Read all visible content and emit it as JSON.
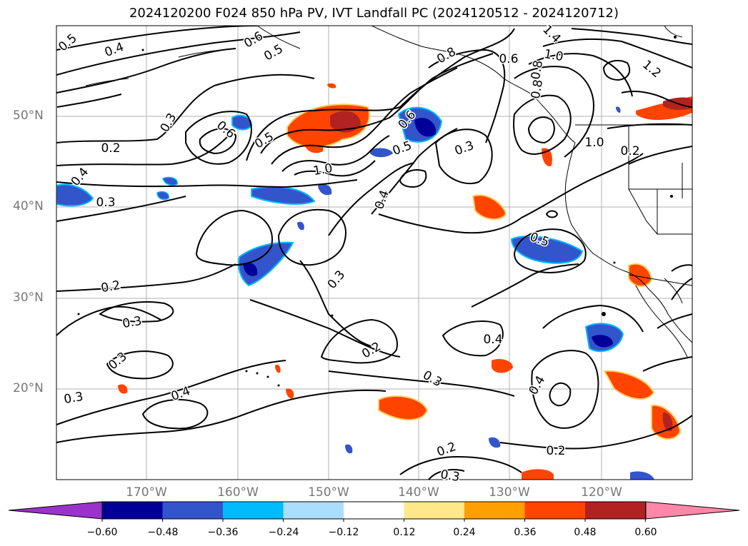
{
  "title": "2024120200 F024 850 hPa PV, IVT Landfall PC (2024120512 - 2024120712)",
  "lat_labels": [
    "50°N",
    "40°N",
    "30°N",
    "20°N"
  ],
  "lon_labels": [
    "170°W",
    "160°W",
    "150°W",
    "140°W",
    "130°W",
    "120°W"
  ],
  "colorbar": {
    "ticks": [
      "−0.60",
      "−0.48",
      "−0.36",
      "−0.24",
      "−0.12",
      "0.12",
      "0.24",
      "0.36",
      "0.48",
      "0.60"
    ],
    "colors": [
      "#9933cc",
      "#000099",
      "#3355cc",
      "#00bbff",
      "#aaddff",
      "#ffffff",
      "#ffe88a",
      "#ffa000",
      "#ff4400",
      "#b22222",
      "#ff88aa"
    ]
  },
  "contour_labels": [
    "0.5",
    "0.4",
    "0.6",
    "0.5",
    "0.3",
    "0.6",
    "0.5",
    "0.2",
    "0.4",
    "0.3",
    "1.0",
    "0.6",
    "0.8",
    "0.6",
    "0.8",
    "0.8",
    "1.4",
    "1.0",
    "1.2",
    "1.0",
    "0.3",
    "0.5",
    "0.4",
    "0.5",
    "0.3",
    "0.2",
    "0.3",
    "0.3",
    "0.3",
    "0.4",
    "0.4",
    "0.2",
    "0.3",
    "0.2",
    "0.2",
    "0.4",
    "0.2",
    "0.3"
  ]
}
